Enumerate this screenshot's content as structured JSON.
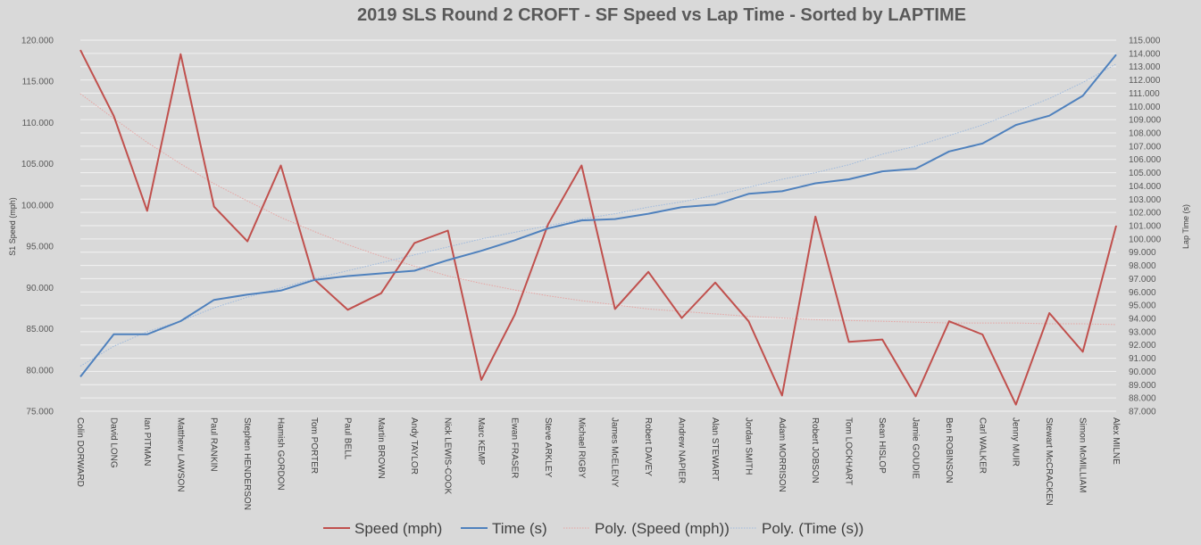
{
  "chart_data": {
    "type": "line",
    "title": "2019 SLS Round 2 CROFT - SF Speed vs Lap Time - Sorted by LAPTIME",
    "ylabel": "S1 Speed (mph)",
    "y2label": "Lap Time (s)",
    "ylim": [
      75,
      120
    ],
    "y2lim": [
      87,
      115
    ],
    "grid": true,
    "legend_position": "bottom",
    "y_ticks": [
      "75.000",
      "80.000",
      "85.000",
      "90.000",
      "95.000",
      "100.000",
      "105.000",
      "110.000",
      "115.000",
      "120.000"
    ],
    "y2_ticks": [
      "87.000",
      "88.000",
      "89.000",
      "90.000",
      "91.000",
      "92.000",
      "93.000",
      "94.000",
      "95.000",
      "96.000",
      "97.000",
      "98.000",
      "99.000",
      "100.000",
      "101.000",
      "102.000",
      "103.000",
      "104.000",
      "105.000",
      "106.000",
      "107.000",
      "108.000",
      "109.000",
      "110.000",
      "111.000",
      "112.000",
      "113.000",
      "114.000",
      "115.000"
    ],
    "categories": [
      "Colin DORWARD",
      "David LONG",
      "Ian PITMAN",
      "Matthew LAWSON",
      "Paul RANKIN",
      "Stephen HENDERSON",
      "Hamish GORDON",
      "Tom PORTER",
      "Paul BELL",
      "Martin BROWN",
      "Andy TAYLOR",
      "Nick LEWIS-COOK",
      "Marc KEMP",
      "Ewan FRASER",
      "Steve ARKLEY",
      "Michael RIGBY",
      "James McELENY",
      "Robert DAVEY",
      "Andrew NAPIER",
      "Alan STEWART",
      "Jordan SMITH",
      "Adam MORRISON",
      "Robert JOBSON",
      "Tom LOCKHART",
      "Sean HISLOP",
      "Jamie GOUDIE",
      "Ben ROBINSON",
      "Carl WALKER",
      "Jenny MUIR",
      "Stewart McCRACKEN",
      "Simon McMILLIAM",
      "Alex MILNE"
    ],
    "series": [
      {
        "name": "Speed (mph)",
        "axis": "left",
        "color": "#c0504d",
        "values": [
          118.8,
          110.8,
          99.3,
          118.3,
          99.8,
          95.6,
          104.8,
          91.0,
          87.3,
          89.3,
          95.4,
          96.9,
          78.8,
          86.7,
          97.7,
          104.8,
          87.4,
          91.9,
          86.3,
          90.6,
          85.9,
          76.9,
          98.6,
          83.4,
          83.7,
          76.8,
          85.9,
          84.3,
          75.8,
          86.9,
          82.2,
          97.5
        ]
      },
      {
        "name": "Time (s)",
        "axis": "right",
        "color": "#4f81bd",
        "values": [
          89.6,
          92.8,
          92.8,
          93.8,
          95.4,
          95.8,
          96.1,
          96.9,
          97.2,
          97.4,
          97.6,
          98.4,
          99.1,
          99.9,
          100.8,
          101.4,
          101.5,
          101.9,
          102.4,
          102.6,
          103.4,
          103.6,
          104.2,
          104.5,
          105.1,
          105.3,
          106.6,
          107.2,
          108.6,
          109.3,
          110.8,
          113.9
        ]
      },
      {
        "name": "Poly. (Speed (mph))",
        "axis": "left",
        "color": "#e6a4a2",
        "dash": true,
        "values": [
          113.5,
          110.5,
          107.6,
          105.0,
          102.6,
          100.5,
          98.5,
          96.8,
          95.2,
          93.8,
          92.6,
          91.4,
          90.5,
          89.7,
          89.0,
          88.4,
          87.9,
          87.4,
          87.1,
          86.8,
          86.5,
          86.3,
          86.1,
          86.0,
          85.9,
          85.8,
          85.7,
          85.7,
          85.7,
          85.6,
          85.6,
          85.5
        ]
      },
      {
        "name": "Poly. (Time (s))",
        "axis": "right",
        "color": "#9db9dd",
        "dash": true,
        "values": [
          90.4,
          91.9,
          93.0,
          93.8,
          94.8,
          95.6,
          96.3,
          97.0,
          97.6,
          98.2,
          98.8,
          99.4,
          100.0,
          100.5,
          101.0,
          101.5,
          101.9,
          102.4,
          102.8,
          103.3,
          103.9,
          104.5,
          105.0,
          105.6,
          106.4,
          107.0,
          107.8,
          108.6,
          109.6,
          110.6,
          111.8,
          113.2
        ]
      }
    ]
  }
}
